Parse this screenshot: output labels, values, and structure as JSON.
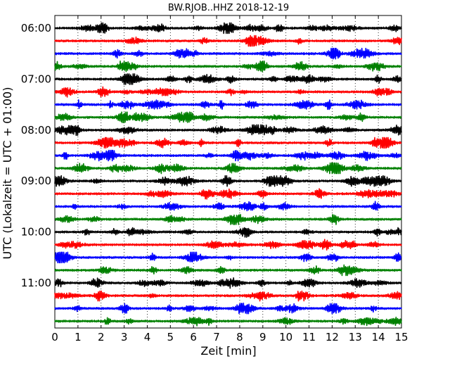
{
  "chart_data": {
    "type": "line",
    "title": "BW.RJOB..HHZ 2018-12-19",
    "xlabel": "Zeit  [min]",
    "ylabel": "UTC (Lokalzeit = UTC + 01:00)",
    "xlim": [
      0,
      15
    ],
    "x_ticks": [
      "0",
      "1",
      "2",
      "3",
      "4",
      "5",
      "6",
      "7",
      "8",
      "9",
      "10",
      "11",
      "12",
      "13",
      "14",
      "15"
    ],
    "y_tick_labels": [
      "06:00",
      "07:00",
      "08:00",
      "09:00",
      "10:00",
      "11:00"
    ],
    "trace_interval_minutes": 15,
    "start_time": "06:00",
    "trace_count": 24,
    "color_cycle": [
      "#000000",
      "#ff0000",
      "#0000ff",
      "#008000"
    ],
    "grid": "vertical dotted",
    "legend": "none"
  }
}
